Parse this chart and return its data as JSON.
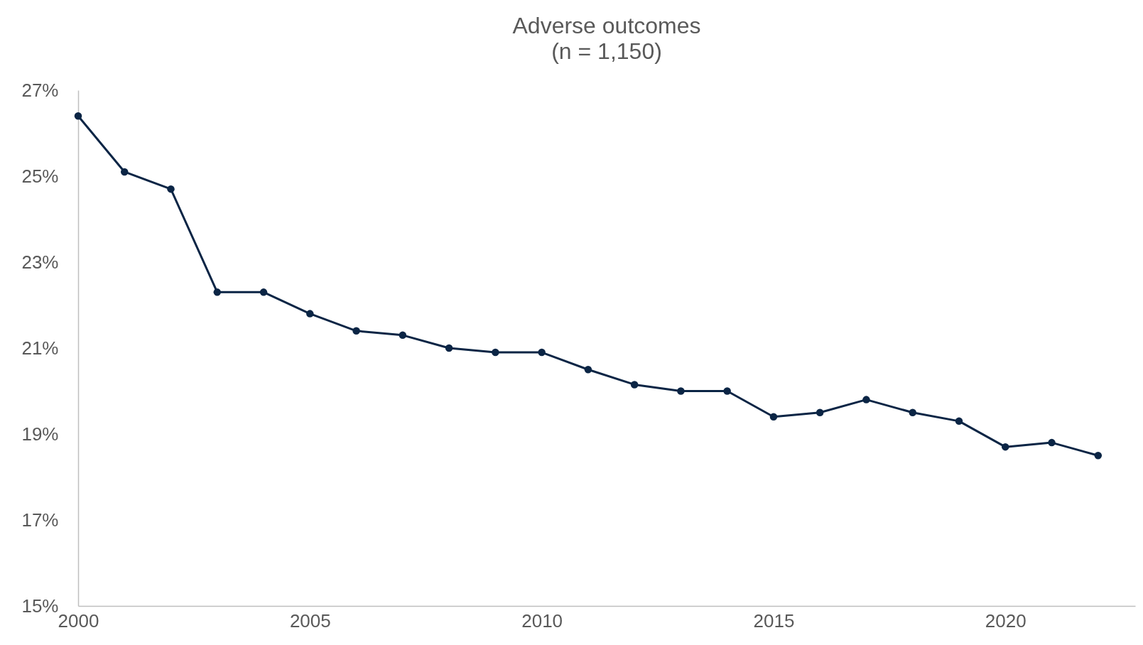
{
  "chart_data": {
    "type": "line",
    "title": "Adverse outcomes",
    "subtitle": "(n = 1,150)",
    "x": [
      2000,
      2001,
      2002,
      2003,
      2004,
      2005,
      2006,
      2007,
      2008,
      2009,
      2010,
      2011,
      2012,
      2013,
      2014,
      2015,
      2016,
      2017,
      2018,
      2019,
      2020,
      2021,
      2022
    ],
    "series": [
      {
        "color": "#0b2545",
        "values": [
          26.4,
          25.1,
          24.7,
          22.3,
          22.3,
          21.8,
          21.4,
          21.3,
          21.0,
          20.9,
          20.9,
          20.5,
          20.15,
          20.0,
          20.0,
          19.4,
          19.5,
          19.8,
          19.5,
          19.3,
          18.7,
          18.8,
          18.5
        ]
      }
    ],
    "xlim": [
      2000,
      2022.8
    ],
    "xticks": [
      2000,
      2005,
      2010,
      2015,
      2020
    ],
    "ylim": [
      15,
      27
    ],
    "yticks": [
      {
        "value": 15,
        "label": "15%"
      },
      {
        "value": 17,
        "label": "17%"
      },
      {
        "value": 19,
        "label": "19%"
      },
      {
        "value": 21,
        "label": "21%"
      },
      {
        "value": 23,
        "label": "23%"
      },
      {
        "value": 25,
        "label": "25%"
      },
      {
        "value": 27,
        "label": "27%"
      }
    ],
    "grid": false,
    "marker": "circle",
    "line_style": "solid"
  }
}
